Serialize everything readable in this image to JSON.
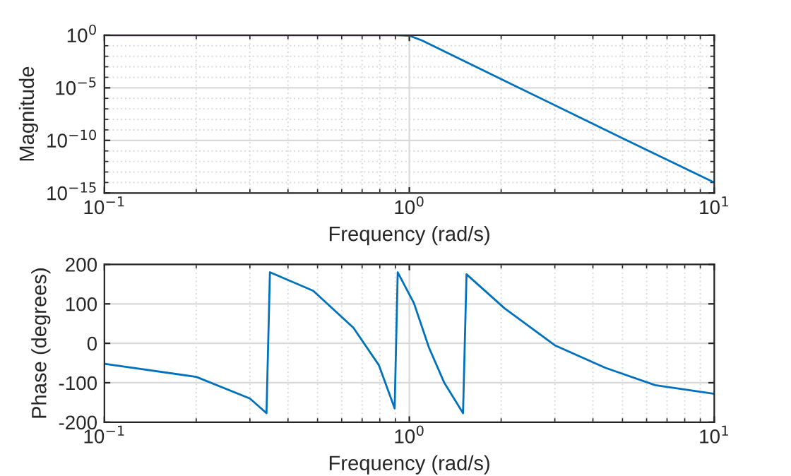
{
  "chart_data": [
    {
      "type": "line",
      "xlabel": "Frequency (rad/s)",
      "ylabel": "Magnitude",
      "log": "xy",
      "grid": true,
      "marker": "none",
      "line_style": "solid",
      "xlim": [
        0.1,
        10
      ],
      "xticks": [
        {
          "value": 0.1,
          "label": "10$^{−1}$"
        },
        {
          "value": 1,
          "label": "10$^{0}$"
        },
        {
          "value": 10,
          "label": "10$^{1}$"
        }
      ],
      "ylim": [
        1e-15,
        1
      ],
      "yticks": [
        {
          "value": 1e-15,
          "label": "10$^{−15}$"
        },
        {
          "value": 1e-10,
          "label": "10$^{−10}$"
        },
        {
          "value": 1e-05,
          "label": "10$^{−5}$"
        },
        {
          "value": 1,
          "label": "10$^{0}$"
        }
      ],
      "series": [
        {
          "color": "#0072bd",
          "x": [
            0.1,
            0.5,
            0.9,
            1.0,
            1.1,
            2,
            5,
            10
          ],
          "values": [
            1,
            1,
            1,
            0.9,
            0.32,
            6.8e-05,
            1.6e-10,
            1e-14
          ]
        }
      ]
    },
    {
      "type": "line",
      "xlabel": "Frequency (rad/s)",
      "ylabel": "Phase (degrees)",
      "log": "x",
      "grid": true,
      "marker": "none",
      "line_style": "solid",
      "xlim": [
        0.1,
        10
      ],
      "xticks": [
        {
          "value": 0.1,
          "label": "10$^{−1}$"
        },
        {
          "value": 1,
          "label": "10$^{0}$"
        },
        {
          "value": 10,
          "label": "10$^{1}$"
        }
      ],
      "ylim": [
        -200,
        200
      ],
      "yticks": [
        -200,
        -100,
        0,
        100,
        200
      ],
      "series": [
        {
          "color": "#0072bd",
          "x": [
            0.1,
            0.2,
            0.3,
            0.34,
            0.349,
            0.484,
            0.656,
            0.794,
            0.895,
            0.916,
            1.035,
            1.16,
            1.3,
            1.5,
            1.54,
            2.05,
            3.0,
            4.39,
            6.4,
            10
          ],
          "values": [
            -52,
            -85,
            -140,
            -177,
            180,
            133,
            39,
            -55,
            -165,
            180,
            102,
            -11,
            -99,
            -177,
            175,
            89,
            -5,
            -62,
            -106,
            -128
          ]
        }
      ]
    }
  ]
}
